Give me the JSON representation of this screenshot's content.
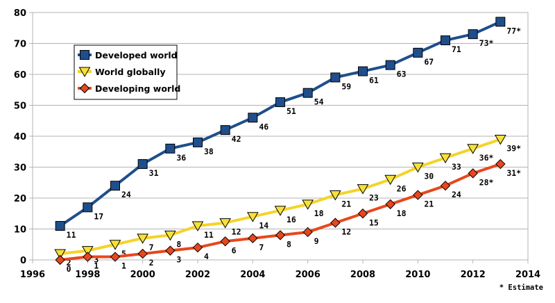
{
  "chart_data": {
    "type": "line",
    "title": "",
    "xlabel": "",
    "ylabel": "",
    "xlim": [
      1996,
      2014
    ],
    "ylim": [
      0,
      80
    ],
    "x_ticks": [
      "1996",
      "1998",
      "2000",
      "2002",
      "2004",
      "2006",
      "2008",
      "2010",
      "2012",
      "2014"
    ],
    "y_ticks": [
      "0",
      "10",
      "20",
      "30",
      "40",
      "50",
      "60",
      "70",
      "80"
    ],
    "grid": "horizontal",
    "legend_position": "top-left",
    "note": "* Estimate",
    "series": [
      {
        "name": "Developed world",
        "color": "#1f4e8c",
        "marker": "square",
        "marker_fill": "#1f4e8c",
        "x": [
          1997,
          1998,
          1999,
          2000,
          2001,
          2002,
          2003,
          2004,
          2005,
          2006,
          2007,
          2008,
          2009,
          2010,
          2011,
          2012,
          2013
        ],
        "y": [
          11,
          17,
          24,
          31,
          36,
          38,
          42,
          46,
          51,
          54,
          59,
          61,
          63,
          67,
          71,
          73,
          77
        ],
        "labels": [
          "11",
          "17",
          "24",
          "31",
          "36",
          "38",
          "42",
          "46",
          "51",
          "54",
          "59",
          "61",
          "63",
          "67",
          "71",
          "73*",
          "77*"
        ]
      },
      {
        "name": "World globally",
        "color": "#f5d328",
        "marker": "triangle-down",
        "marker_fill": "#f5e13a",
        "x": [
          1997,
          1998,
          1999,
          2000,
          2001,
          2002,
          2003,
          2004,
          2005,
          2006,
          2007,
          2008,
          2009,
          2010,
          2011,
          2012,
          2013
        ],
        "y": [
          2,
          3,
          5,
          7,
          8,
          11,
          12,
          14,
          16,
          18,
          21,
          23,
          26,
          30,
          33,
          36,
          39
        ],
        "labels": [
          "2",
          "3",
          "5",
          "7",
          "8",
          "11",
          "12",
          "14",
          "16",
          "18",
          "21",
          "23",
          "26",
          "30",
          "33",
          "36*",
          "39*"
        ]
      },
      {
        "name": "Developing world",
        "color": "#e8471c",
        "marker": "diamond",
        "marker_fill": "#e8471c",
        "x": [
          1997,
          1998,
          1999,
          2000,
          2001,
          2002,
          2003,
          2004,
          2005,
          2006,
          2007,
          2008,
          2009,
          2010,
          2011,
          2012,
          2013
        ],
        "y": [
          0,
          1,
          1,
          2,
          3,
          4,
          6,
          7,
          8,
          9,
          12,
          15,
          18,
          21,
          24,
          28,
          31
        ],
        "labels": [
          "0",
          "1",
          "1",
          "2",
          "3",
          "4",
          "6",
          "7",
          "8",
          "9",
          "12",
          "15",
          "18",
          "21",
          "24",
          "28*",
          "31*"
        ]
      }
    ]
  }
}
